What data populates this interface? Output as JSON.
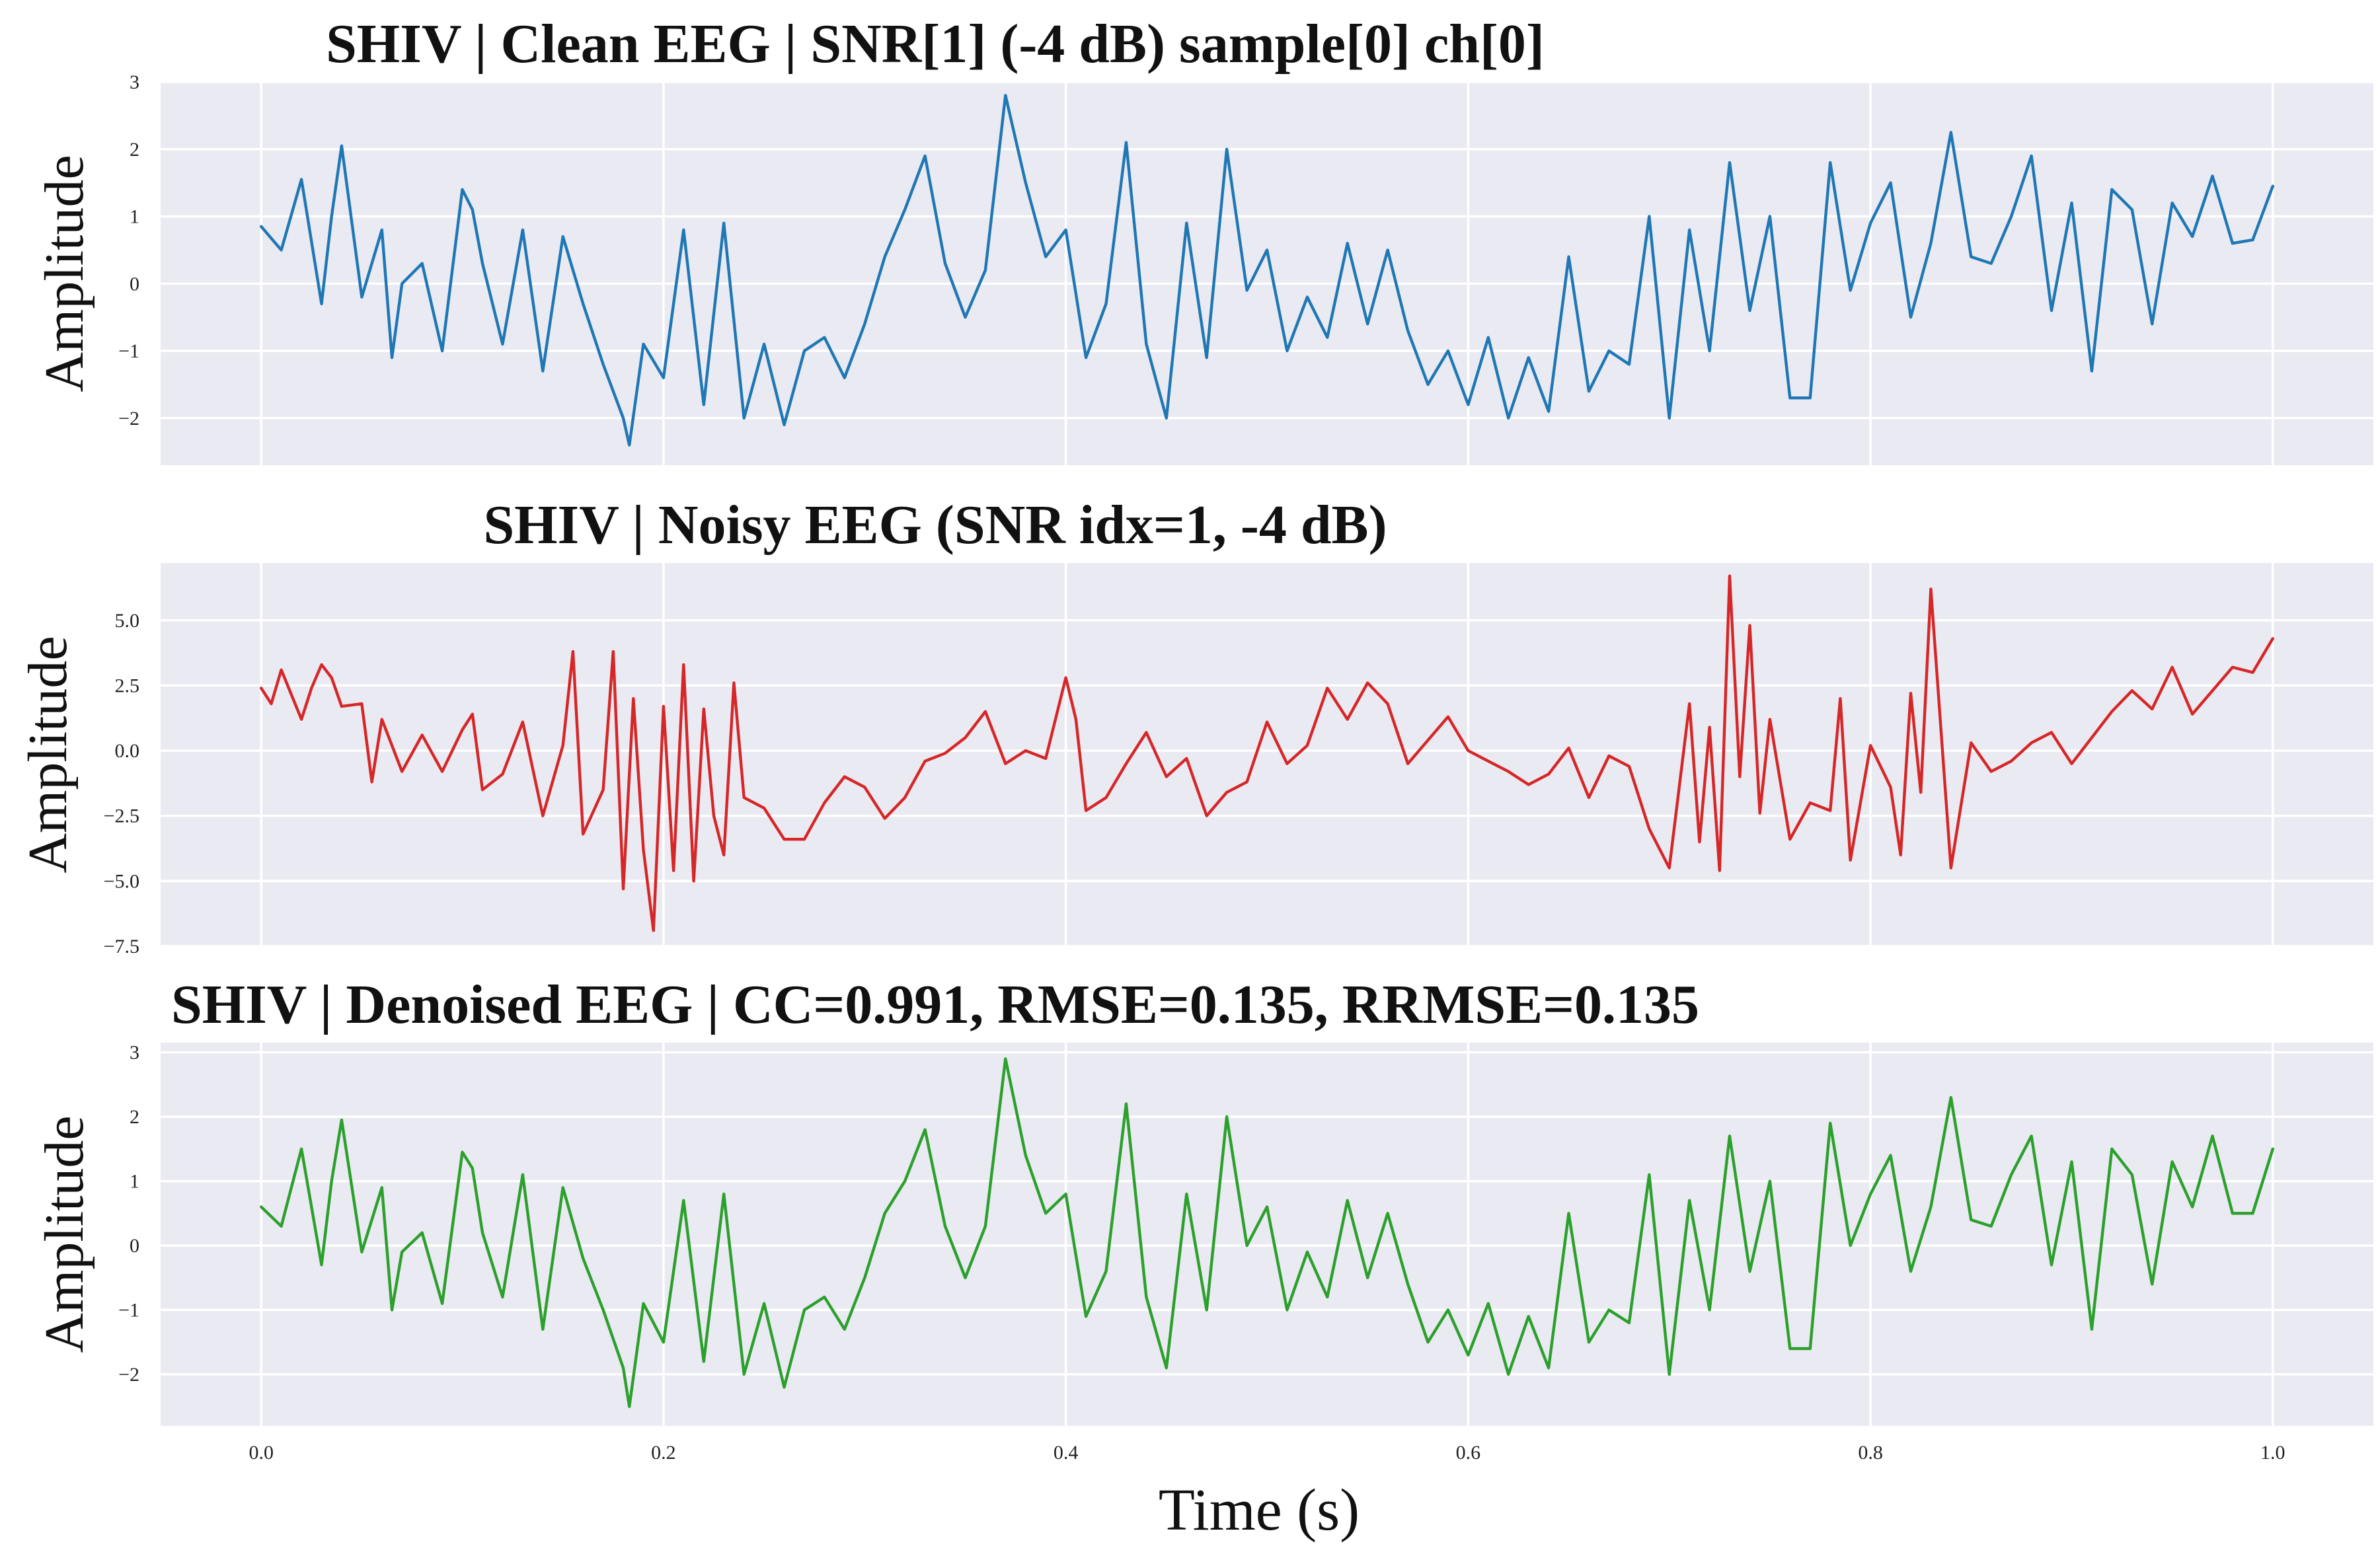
{
  "chart_data": [
    {
      "type": "line",
      "title": "SHIV | Clean EEG | SNR[1] (-4 dB) sample[0] ch[0]",
      "ylabel": "Amplitude",
      "xlabel": "",
      "xlim": [
        -0.05,
        1.05
      ],
      "ylim": [
        -2.7,
        3.0
      ],
      "x_ticks": [
        0.0,
        0.2,
        0.4,
        0.6,
        0.8,
        1.0
      ],
      "x_tick_labels": [
        "",
        "",
        "",
        "",
        "",
        ""
      ],
      "y_ticks": [
        -2,
        -1,
        0,
        1,
        2,
        3
      ],
      "y_tick_labels": [
        "−2",
        "−1",
        "0",
        "1",
        "2",
        "3"
      ],
      "grid": true,
      "color": "#1f77b4",
      "series": [
        {
          "x": [
            0.0,
            0.01,
            0.02,
            0.03,
            0.035,
            0.04,
            0.05,
            0.06,
            0.065,
            0.07,
            0.08,
            0.09,
            0.1,
            0.105,
            0.11,
            0.12,
            0.13,
            0.14,
            0.15,
            0.16,
            0.17,
            0.18,
            0.183,
            0.19,
            0.2,
            0.21,
            0.22,
            0.23,
            0.24,
            0.25,
            0.26,
            0.27,
            0.28,
            0.29,
            0.3,
            0.31,
            0.32,
            0.33,
            0.34,
            0.35,
            0.36,
            0.37,
            0.38,
            0.39,
            0.4,
            0.41,
            0.42,
            0.43,
            0.44,
            0.45,
            0.46,
            0.47,
            0.48,
            0.49,
            0.5,
            0.51,
            0.52,
            0.53,
            0.54,
            0.55,
            0.56,
            0.57,
            0.58,
            0.59,
            0.6,
            0.61,
            0.62,
            0.63,
            0.64,
            0.65,
            0.66,
            0.67,
            0.68,
            0.69,
            0.7,
            0.71,
            0.72,
            0.73,
            0.74,
            0.75,
            0.76,
            0.77,
            0.78,
            0.79,
            0.8,
            0.81,
            0.82,
            0.83,
            0.84,
            0.85,
            0.86,
            0.87,
            0.88,
            0.89,
            0.9,
            0.91,
            0.92,
            0.93,
            0.94,
            0.95,
            0.96,
            0.97,
            0.98,
            0.99,
            1.0
          ],
          "values": [
            0.85,
            0.5,
            1.55,
            -0.3,
            1.0,
            2.05,
            -0.2,
            0.8,
            -1.1,
            0.0,
            0.3,
            -1.0,
            1.4,
            1.1,
            0.3,
            -0.9,
            0.8,
            -1.3,
            0.7,
            -0.3,
            -1.2,
            -2.0,
            -2.4,
            -0.9,
            -1.4,
            0.8,
            -1.8,
            0.9,
            -2.0,
            -0.9,
            -2.1,
            -1.0,
            -0.8,
            -1.4,
            -0.6,
            0.4,
            1.1,
            1.9,
            0.3,
            -0.5,
            0.2,
            2.8,
            1.5,
            0.4,
            0.8,
            -1.1,
            -0.3,
            2.1,
            -0.9,
            -2.0,
            0.9,
            -1.1,
            2.0,
            -0.1,
            0.5,
            -1.0,
            -0.2,
            -0.8,
            0.6,
            -0.6,
            0.5,
            -0.7,
            -1.5,
            -1.0,
            -1.8,
            -0.8,
            -2.0,
            -1.1,
            -1.9,
            0.4,
            -1.6,
            -1.0,
            -1.2,
            1.0,
            -2.0,
            0.8,
            -1.0,
            1.8,
            -0.4,
            1.0,
            -1.7,
            -1.7,
            1.8,
            -0.1,
            0.9,
            1.5,
            -0.5,
            0.6,
            2.25,
            0.4,
            0.3,
            1.0,
            1.9,
            -0.4,
            1.2,
            -1.3,
            1.4,
            1.1,
            -0.6,
            1.2,
            0.7,
            1.6,
            0.6,
            0.65,
            1.45
          ]
        }
      ]
    },
    {
      "type": "line",
      "title": "SHIV | Noisy EEG (SNR idx=1, -4 dB)",
      "ylabel": "Amplitude",
      "xlabel": "",
      "xlim": [
        -0.05,
        1.05
      ],
      "ylim": [
        -7.5,
        7.2
      ],
      "x_ticks": [
        0.0,
        0.2,
        0.4,
        0.6,
        0.8,
        1.0
      ],
      "x_tick_labels": [
        "",
        "",
        "",
        "",
        "",
        ""
      ],
      "y_ticks": [
        -7.5,
        -5.0,
        -2.5,
        0.0,
        2.5,
        5.0
      ],
      "y_tick_labels": [
        "−7.5",
        "−5.0",
        "−2.5",
        "0.0",
        "2.5",
        "5.0"
      ],
      "grid": true,
      "color": "#d62728",
      "series": [
        {
          "x": [
            0.0,
            0.005,
            0.01,
            0.02,
            0.025,
            0.03,
            0.035,
            0.04,
            0.05,
            0.055,
            0.06,
            0.07,
            0.08,
            0.09,
            0.1,
            0.105,
            0.11,
            0.12,
            0.13,
            0.14,
            0.15,
            0.155,
            0.16,
            0.17,
            0.175,
            0.18,
            0.185,
            0.19,
            0.195,
            0.2,
            0.205,
            0.21,
            0.215,
            0.22,
            0.225,
            0.23,
            0.235,
            0.24,
            0.25,
            0.26,
            0.27,
            0.28,
            0.29,
            0.3,
            0.31,
            0.32,
            0.33,
            0.34,
            0.35,
            0.36,
            0.37,
            0.38,
            0.39,
            0.4,
            0.405,
            0.41,
            0.42,
            0.43,
            0.44,
            0.45,
            0.46,
            0.47,
            0.48,
            0.49,
            0.5,
            0.51,
            0.52,
            0.53,
            0.54,
            0.55,
            0.56,
            0.57,
            0.58,
            0.59,
            0.6,
            0.61,
            0.62,
            0.63,
            0.64,
            0.65,
            0.66,
            0.67,
            0.68,
            0.69,
            0.7,
            0.71,
            0.715,
            0.72,
            0.725,
            0.73,
            0.735,
            0.74,
            0.745,
            0.75,
            0.76,
            0.77,
            0.78,
            0.785,
            0.79,
            0.8,
            0.81,
            0.815,
            0.82,
            0.825,
            0.83,
            0.84,
            0.85,
            0.86,
            0.87,
            0.88,
            0.89,
            0.9,
            0.91,
            0.92,
            0.93,
            0.94,
            0.95,
            0.96,
            0.97,
            0.98,
            0.99,
            1.0
          ],
          "values": [
            2.4,
            1.8,
            3.1,
            1.2,
            2.4,
            3.3,
            2.8,
            1.7,
            1.8,
            -1.2,
            1.2,
            -0.8,
            0.6,
            -0.8,
            0.8,
            1.4,
            -1.5,
            -0.9,
            1.1,
            -2.5,
            0.2,
            3.8,
            -3.2,
            -1.5,
            3.8,
            -5.3,
            2.0,
            -3.8,
            -6.9,
            1.7,
            -4.6,
            3.3,
            -5.0,
            1.6,
            -2.5,
            -4.0,
            2.6,
            -1.8,
            -2.2,
            -3.4,
            -3.4,
            -2.0,
            -1.0,
            -1.4,
            -2.6,
            -1.8,
            -0.4,
            -0.1,
            0.5,
            1.5,
            -0.5,
            0.0,
            -0.3,
            2.8,
            1.2,
            -2.3,
            -1.8,
            -0.5,
            0.7,
            -1.0,
            -0.3,
            -2.5,
            -1.6,
            -1.2,
            1.1,
            -0.5,
            0.2,
            2.4,
            1.2,
            2.6,
            1.8,
            -0.5,
            0.4,
            1.3,
            0.0,
            -0.4,
            -0.8,
            -1.3,
            -0.9,
            0.1,
            -1.8,
            -0.2,
            -0.6,
            -3.0,
            -4.5,
            1.8,
            -3.5,
            0.9,
            -4.6,
            6.7,
            -1.0,
            4.8,
            -2.4,
            1.2,
            -3.4,
            -2.0,
            -2.3,
            2.0,
            -4.2,
            0.2,
            -1.4,
            -4.0,
            2.2,
            -1.6,
            6.2,
            -4.5,
            0.3,
            -0.8,
            -0.4,
            0.3,
            0.7,
            -0.5,
            0.5,
            1.5,
            2.3,
            1.6,
            3.2,
            1.4,
            2.3,
            3.2,
            3.0,
            4.3
          ]
        }
      ]
    },
    {
      "type": "line",
      "title": "SHIV | Denoised EEG | CC=0.991, RMSE=0.135, RRMSE=0.135",
      "ylabel": "Amplitude",
      "xlabel": "Time (s)",
      "xlim": [
        -0.05,
        1.05
      ],
      "ylim": [
        -2.8,
        3.15
      ],
      "x_ticks": [
        0.0,
        0.2,
        0.4,
        0.6,
        0.8,
        1.0
      ],
      "x_tick_labels": [
        "0.0",
        "0.2",
        "0.4",
        "0.6",
        "0.8",
        "1.0"
      ],
      "y_ticks": [
        -2,
        -1,
        0,
        1,
        2,
        3
      ],
      "y_tick_labels": [
        "−2",
        "−1",
        "0",
        "1",
        "2",
        "3"
      ],
      "grid": true,
      "color": "#2ca02c",
      "series": [
        {
          "x": [
            0.0,
            0.01,
            0.02,
            0.03,
            0.035,
            0.04,
            0.05,
            0.06,
            0.065,
            0.07,
            0.08,
            0.09,
            0.1,
            0.105,
            0.11,
            0.12,
            0.13,
            0.14,
            0.15,
            0.16,
            0.17,
            0.18,
            0.183,
            0.19,
            0.2,
            0.21,
            0.22,
            0.23,
            0.24,
            0.25,
            0.26,
            0.27,
            0.28,
            0.29,
            0.3,
            0.31,
            0.32,
            0.33,
            0.34,
            0.35,
            0.36,
            0.37,
            0.38,
            0.39,
            0.4,
            0.41,
            0.42,
            0.43,
            0.44,
            0.45,
            0.46,
            0.47,
            0.48,
            0.49,
            0.5,
            0.51,
            0.52,
            0.53,
            0.54,
            0.55,
            0.56,
            0.57,
            0.58,
            0.59,
            0.6,
            0.61,
            0.62,
            0.63,
            0.64,
            0.65,
            0.66,
            0.67,
            0.68,
            0.69,
            0.7,
            0.71,
            0.72,
            0.73,
            0.74,
            0.75,
            0.76,
            0.77,
            0.78,
            0.79,
            0.8,
            0.81,
            0.82,
            0.83,
            0.84,
            0.85,
            0.86,
            0.87,
            0.88,
            0.89,
            0.9,
            0.91,
            0.92,
            0.93,
            0.94,
            0.95,
            0.96,
            0.97,
            0.98,
            0.99,
            1.0
          ],
          "values": [
            0.6,
            0.3,
            1.5,
            -0.3,
            1.0,
            1.95,
            -0.1,
            0.9,
            -1.0,
            -0.1,
            0.2,
            -0.9,
            1.45,
            1.2,
            0.2,
            -0.8,
            1.1,
            -1.3,
            0.9,
            -0.2,
            -1.0,
            -1.9,
            -2.5,
            -0.9,
            -1.5,
            0.7,
            -1.8,
            0.8,
            -2.0,
            -0.9,
            -2.2,
            -1.0,
            -0.8,
            -1.3,
            -0.5,
            0.5,
            1.0,
            1.8,
            0.3,
            -0.5,
            0.3,
            2.9,
            1.4,
            0.5,
            0.8,
            -1.1,
            -0.4,
            2.2,
            -0.8,
            -1.9,
            0.8,
            -1.0,
            2.0,
            0.0,
            0.6,
            -1.0,
            -0.1,
            -0.8,
            0.7,
            -0.5,
            0.5,
            -0.6,
            -1.5,
            -1.0,
            -1.7,
            -0.9,
            -2.0,
            -1.1,
            -1.9,
            0.5,
            -1.5,
            -1.0,
            -1.2,
            1.1,
            -2.0,
            0.7,
            -1.0,
            1.7,
            -0.4,
            1.0,
            -1.6,
            -1.6,
            1.9,
            0.0,
            0.8,
            1.4,
            -0.4,
            0.6,
            2.3,
            0.4,
            0.3,
            1.1,
            1.7,
            -0.3,
            1.3,
            -1.3,
            1.5,
            1.1,
            -0.6,
            1.3,
            0.6,
            1.7,
            0.5,
            0.5,
            1.5
          ]
        }
      ]
    }
  ]
}
